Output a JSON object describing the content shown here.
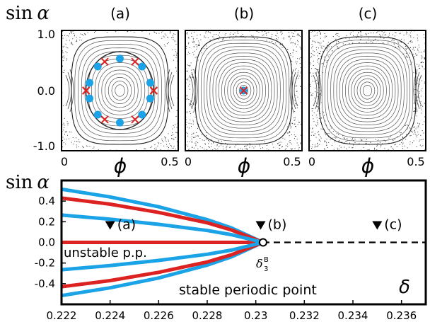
{
  "figure": {
    "panel_labels": [
      "(a)",
      "(b)",
      "(c)"
    ],
    "top_ylabel_fn": "sin",
    "top_ylabel_var": "α",
    "top_xlabel": "ϕ",
    "top_yticks": [
      "1.0",
      "0.0",
      "-1.0"
    ],
    "top_xticks": [
      "0",
      "0.5"
    ],
    "bottom_ylabel_fn": "sin",
    "bottom_ylabel_var": "α",
    "bottom_xlabel": "δ",
    "bifurcation_label": "δ",
    "bifurcation_sub": "3",
    "bifurcation_sup": "B",
    "annotations": [
      {
        "label": "(a)",
        "delta": 0.224
      },
      {
        "label": "(b)",
        "delta": 0.2302
      },
      {
        "label": "(c)",
        "delta": 0.235
      }
    ],
    "legend_unstable": "unstable p.p.",
    "legend_stable": "stable periodic point",
    "colors": {
      "stable": "#1aa3e6",
      "unstable": "#dd2222",
      "axis": "#000000"
    }
  },
  "chart_data": [
    {
      "type": "scatter",
      "title": "(a)",
      "xlabel": "ϕ",
      "ylabel": "sin α",
      "xlim": [
        0,
        0.5
      ],
      "ylim": [
        -1,
        1
      ],
      "series": [
        {
          "name": "stable periodic point",
          "x": [
            0.25,
            0.345,
            0.38,
            0.38,
            0.345,
            0.25,
            0.155,
            0.12,
            0.12,
            0.155
          ],
          "y": [
            0.53,
            0.4,
            0.13,
            -0.13,
            -0.4,
            -0.53,
            -0.4,
            -0.13,
            0.13,
            0.4
          ]
        },
        {
          "name": "unstable p.p.",
          "x": [
            0.185,
            0.315,
            0.395,
            0.395,
            0.315,
            0.185,
            0.105,
            0.105
          ],
          "y": [
            0.48,
            0.48,
            0.0,
            0.0,
            -0.48,
            -0.48,
            0.0,
            0.0
          ]
        }
      ]
    },
    {
      "type": "scatter",
      "title": "(b)",
      "xlabel": "ϕ",
      "ylabel": "sin α",
      "xlim": [
        0,
        0.5
      ],
      "ylim": [
        -1,
        1
      ],
      "series": [
        {
          "name": "stable periodic point",
          "x": [
            0.25
          ],
          "y": [
            0.0
          ]
        },
        {
          "name": "unstable p.p.",
          "x": [
            0.25
          ],
          "y": [
            0.0
          ]
        }
      ]
    },
    {
      "type": "scatter",
      "title": "(c)",
      "xlabel": "ϕ",
      "ylabel": "sin α",
      "xlim": [
        0,
        0.5
      ],
      "ylim": [
        -1,
        1
      ],
      "series": []
    },
    {
      "type": "line",
      "xlabel": "δ",
      "ylabel": "sin α",
      "xlim": [
        0.222,
        0.237
      ],
      "ylim": [
        -0.6,
        0.6
      ],
      "xticks": [
        "0.222",
        "0.224",
        "0.226",
        "0.228",
        "0.23",
        "0.232",
        "0.234",
        "0.236"
      ],
      "yticks": [
        "0.4",
        "0.2",
        "0.0",
        "-0.2",
        "-0.4"
      ],
      "bifurcation_delta": 0.2303,
      "series": [
        {
          "name": "stable periodic point",
          "x": [
            0.222,
            0.224,
            0.226,
            0.228,
            0.229,
            0.2303
          ],
          "y_outer": [
            0.515,
            0.44,
            0.345,
            0.22,
            0.14,
            0.0
          ],
          "y_inner": [
            0.265,
            0.225,
            0.175,
            0.115,
            0.075,
            0.0
          ]
        },
        {
          "name": "unstable p.p.",
          "x": [
            0.222,
            0.224,
            0.226,
            0.228,
            0.229,
            0.2303
          ],
          "y_upper": [
            0.43,
            0.37,
            0.29,
            0.19,
            0.12,
            0.0
          ],
          "y_axis": [
            0,
            0,
            0,
            0,
            0,
            0
          ]
        },
        {
          "name": "fixed point (dashed)",
          "x": [
            0.222,
            0.237
          ],
          "y": [
            0.0,
            0.0
          ]
        }
      ]
    }
  ]
}
